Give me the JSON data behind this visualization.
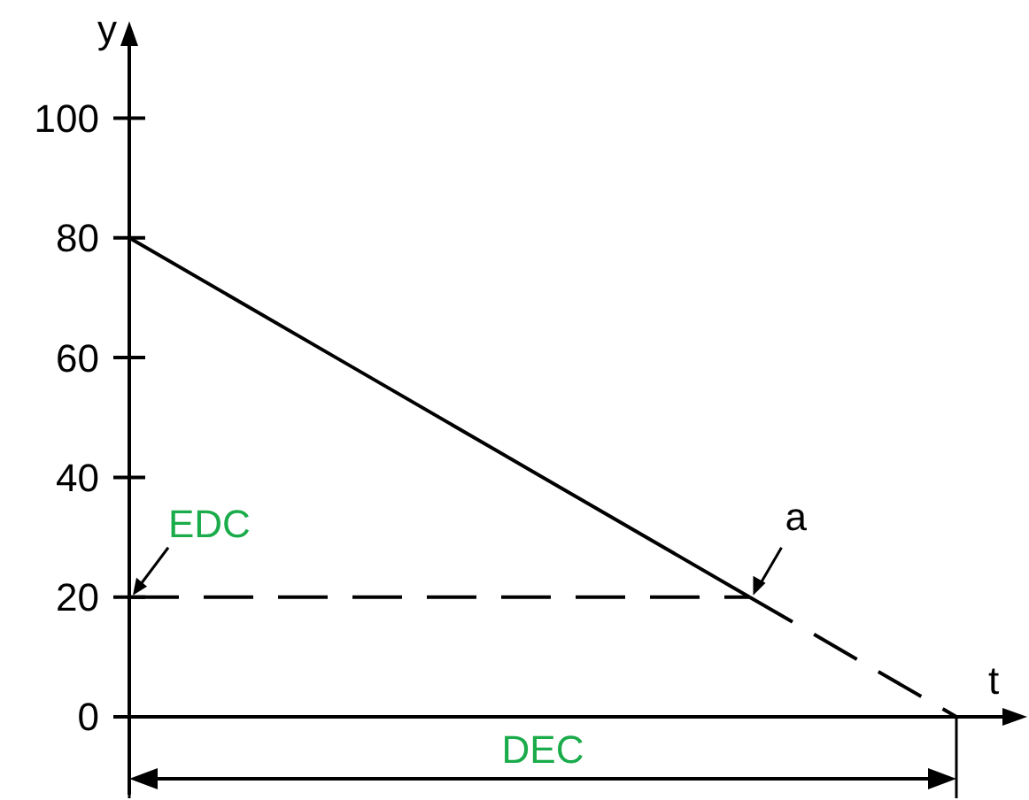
{
  "chart_data": {
    "type": "line",
    "ylabel": "y",
    "xlabel": "t",
    "categories": [
      null,
      null,
      null,
      null,
      null
    ],
    "series": [
      {
        "color": "#000000",
        "values": [
          80,
          60,
          40,
          20,
          null
        ],
        "line_style": "solid"
      },
      {
        "color": "#000000",
        "values": [
          null,
          null,
          null,
          20,
          0
        ],
        "line_style": "dashed"
      }
    ],
    "ylim": [
      -13,
      115
    ],
    "yticks": [
      0,
      20,
      40,
      60,
      80,
      100
    ],
    "ref_lines": [
      {
        "axis": "y",
        "value": 20,
        "label": "EDC",
        "color": "#000000",
        "line_style": "dashed"
      }
    ],
    "annotations": [
      "a",
      "DEC"
    ]
  }
}
